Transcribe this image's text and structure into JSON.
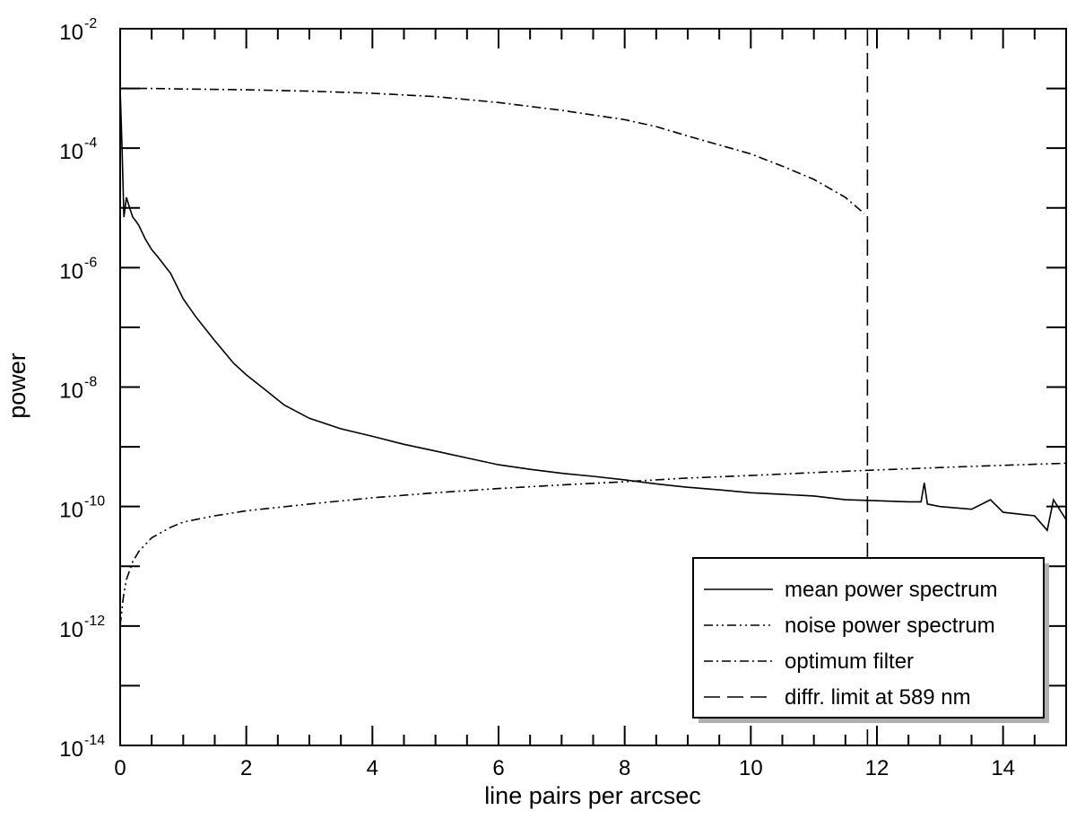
{
  "chart_data": {
    "type": "line",
    "title": "",
    "xlabel": "line pairs per arcsec",
    "ylabel": "power",
    "xlim": [
      0,
      15
    ],
    "ylim_log10": [
      -14,
      -2
    ],
    "yscale": "log",
    "grid": false,
    "legend_position": "bottom-right",
    "x_ticks": [
      "0",
      "2",
      "4",
      "6",
      "8",
      "10",
      "12",
      "14"
    ],
    "y_ticks": [
      {
        "base": "10",
        "exp": "-14"
      },
      {
        "base": "10",
        "exp": "-12"
      },
      {
        "base": "10",
        "exp": "-10"
      },
      {
        "base": "10",
        "exp": "-8"
      },
      {
        "base": "10",
        "exp": "-6"
      },
      {
        "base": "10",
        "exp": "-4"
      },
      {
        "base": "10",
        "exp": "-2"
      }
    ],
    "series": [
      {
        "name": "mean power spectrum",
        "style": "solid",
        "x": [
          0,
          0.03,
          0.06,
          0.1,
          0.15,
          0.2,
          0.25,
          0.3,
          0.4,
          0.5,
          0.6,
          0.8,
          1.0,
          1.2,
          1.5,
          1.8,
          2.0,
          2.3,
          2.6,
          3.0,
          3.5,
          4.0,
          4.5,
          5.0,
          5.5,
          6.0,
          6.5,
          7.0,
          7.5,
          8.0,
          8.5,
          9.0,
          9.5,
          10.0,
          10.5,
          11.0,
          11.5,
          12.0,
          12.5,
          12.7,
          12.75,
          12.8,
          13.0,
          13.5,
          13.8,
          14.0,
          14.5,
          14.7,
          14.8,
          15.0
        ],
        "y": [
          0.001,
          0.0001,
          7e-06,
          1.5e-05,
          1e-05,
          7e-06,
          6e-06,
          5e-06,
          3e-06,
          2e-06,
          1.5e-06,
          8e-07,
          3e-07,
          1.5e-07,
          6e-08,
          2.5e-08,
          1.6e-08,
          9e-09,
          5e-09,
          3e-09,
          2e-09,
          1.5e-09,
          1.1e-09,
          8.5e-10,
          6.5e-10,
          5e-10,
          4.2e-10,
          3.6e-10,
          3.2e-10,
          2.8e-10,
          2.4e-10,
          2.1e-10,
          1.9e-10,
          1.7e-10,
          1.6e-10,
          1.5e-10,
          1.3e-10,
          1.25e-10,
          1.2e-10,
          1.2e-10,
          2.5e-10,
          1.1e-10,
          1e-10,
          9e-11,
          1.3e-10,
          8e-11,
          7e-11,
          4e-11,
          1.3e-10,
          6e-11
        ]
      },
      {
        "name": "noise power spectrum",
        "style": "dash-dot-dot",
        "x": [
          0,
          0.05,
          0.1,
          0.2,
          0.3,
          0.5,
          0.8,
          1.0,
          1.5,
          2.0,
          3.0,
          4.0,
          5.0,
          6.0,
          7.0,
          8.0,
          9.0,
          10.0,
          11.0,
          12.0,
          13.0,
          14.0,
          15.0
        ],
        "y": [
          1e-12,
          3e-12,
          6e-12,
          1.2e-11,
          1.8e-11,
          3e-11,
          4.5e-11,
          5.5e-11,
          7e-11,
          8.5e-11,
          1.1e-10,
          1.4e-10,
          1.7e-10,
          2e-10,
          2.3e-10,
          2.6e-10,
          3e-10,
          3.3e-10,
          3.7e-10,
          4.1e-10,
          4.5e-10,
          4.9e-10,
          5.3e-10
        ]
      },
      {
        "name": "optimum filter",
        "style": "dash-dot",
        "x": [
          0,
          0.5,
          1,
          2,
          3,
          4,
          5,
          6,
          7,
          8,
          8.5,
          9,
          10,
          10.5,
          11,
          11.5,
          11.8
        ],
        "y": [
          0.001,
          0.001,
          0.00098,
          0.00095,
          0.0009,
          0.00083,
          0.00073,
          0.00058,
          0.00043,
          0.0003,
          0.00023,
          0.00016,
          8e-05,
          5e-05,
          3e-05,
          1.5e-05,
          8e-06
        ]
      },
      {
        "name": "diffr. limit at 589 nm",
        "style": "long-dash",
        "x": [
          11.85,
          11.85
        ],
        "y": [
          1e-14,
          0.01
        ]
      }
    ]
  }
}
